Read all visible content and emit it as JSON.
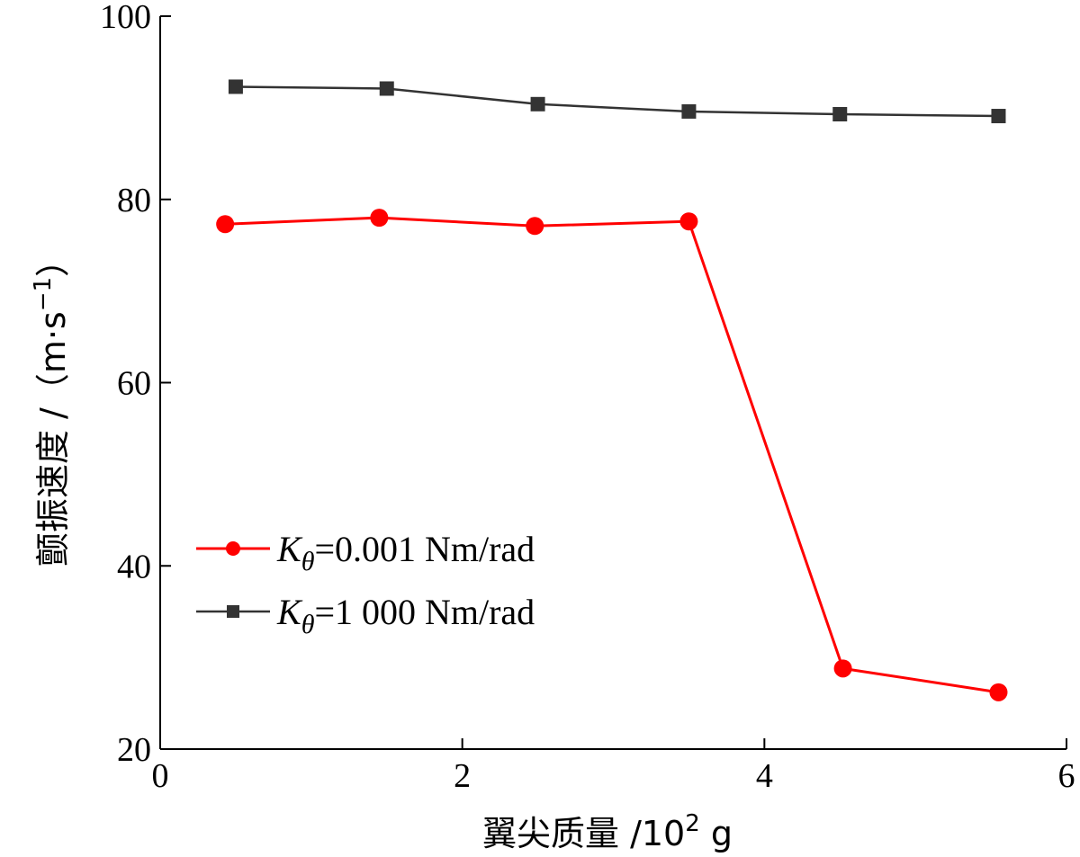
{
  "chart_data": {
    "type": "line",
    "xlabel": {
      "main": "翼尖质量 /10",
      "sup": "2",
      "unit": " g"
    },
    "ylabel": {
      "main": "颤振速度 /（m·s",
      "sup": "−1",
      "close": "）"
    },
    "xlim": [
      0,
      6
    ],
    "ylim": [
      20,
      100
    ],
    "xticks": [
      0,
      2,
      4,
      6
    ],
    "yticks": [
      20,
      40,
      60,
      80,
      100
    ],
    "grid": false,
    "legend_position": "lower-left",
    "series": [
      {
        "name": "Kθ=0.001 Nm/rad",
        "legend": {
          "k": "K",
          "sub": "θ",
          "rest": "=0.001 Nm/rad"
        },
        "color": "#ff0000",
        "marker": "circle",
        "x": [
          0.43,
          1.45,
          2.48,
          3.5,
          4.52,
          5.55
        ],
        "y": [
          77.3,
          78.0,
          77.1,
          77.6,
          28.8,
          26.2
        ]
      },
      {
        "name": "Kθ=1 000 Nm/rad",
        "legend": {
          "k": "K",
          "sub": "θ",
          "rest": "=1 000 Nm/rad"
        },
        "color": "#333333",
        "marker": "square",
        "x": [
          0.5,
          1.5,
          2.5,
          3.5,
          4.5,
          5.55
        ],
        "y": [
          92.3,
          92.1,
          90.4,
          89.6,
          89.3,
          89.1
        ]
      }
    ]
  }
}
